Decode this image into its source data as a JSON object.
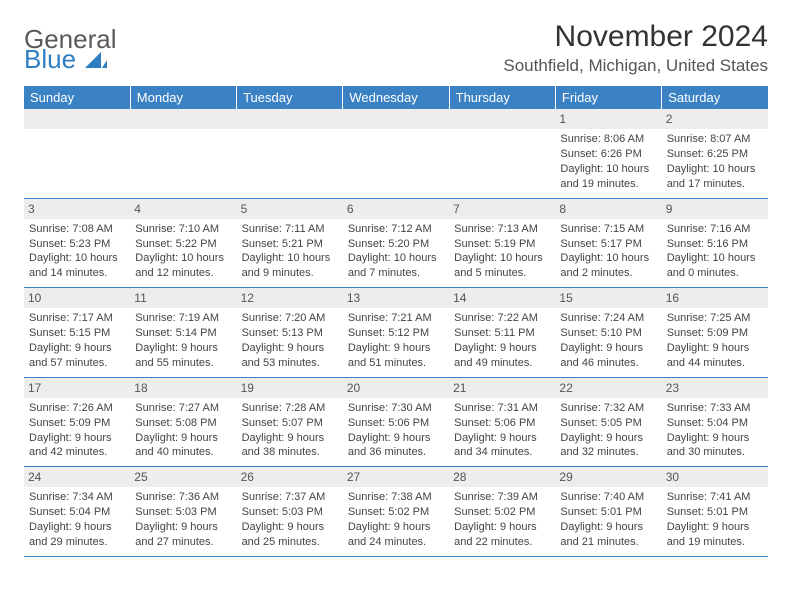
{
  "logo": {
    "line1": "General",
    "line2": "Blue"
  },
  "title": "November 2024",
  "subtitle": "Southfield, Michigan, United States",
  "colors": {
    "headerBar": "#3b82c4",
    "dayStrip": "#ededed",
    "ruleLine": "#3b82c4",
    "logoBlue": "#2f7ec2",
    "text": "#333333"
  },
  "dayHeaders": [
    "Sunday",
    "Monday",
    "Tuesday",
    "Wednesday",
    "Thursday",
    "Friday",
    "Saturday"
  ],
  "weeks": [
    [
      null,
      null,
      null,
      null,
      null,
      {
        "n": "1",
        "sr": "Sunrise: 8:06 AM",
        "ss": "Sunset: 6:26 PM",
        "d1": "Daylight: 10 hours",
        "d2": "and 19 minutes."
      },
      {
        "n": "2",
        "sr": "Sunrise: 8:07 AM",
        "ss": "Sunset: 6:25 PM",
        "d1": "Daylight: 10 hours",
        "d2": "and 17 minutes."
      }
    ],
    [
      {
        "n": "3",
        "sr": "Sunrise: 7:08 AM",
        "ss": "Sunset: 5:23 PM",
        "d1": "Daylight: 10 hours",
        "d2": "and 14 minutes."
      },
      {
        "n": "4",
        "sr": "Sunrise: 7:10 AM",
        "ss": "Sunset: 5:22 PM",
        "d1": "Daylight: 10 hours",
        "d2": "and 12 minutes."
      },
      {
        "n": "5",
        "sr": "Sunrise: 7:11 AM",
        "ss": "Sunset: 5:21 PM",
        "d1": "Daylight: 10 hours",
        "d2": "and 9 minutes."
      },
      {
        "n": "6",
        "sr": "Sunrise: 7:12 AM",
        "ss": "Sunset: 5:20 PM",
        "d1": "Daylight: 10 hours",
        "d2": "and 7 minutes."
      },
      {
        "n": "7",
        "sr": "Sunrise: 7:13 AM",
        "ss": "Sunset: 5:19 PM",
        "d1": "Daylight: 10 hours",
        "d2": "and 5 minutes."
      },
      {
        "n": "8",
        "sr": "Sunrise: 7:15 AM",
        "ss": "Sunset: 5:17 PM",
        "d1": "Daylight: 10 hours",
        "d2": "and 2 minutes."
      },
      {
        "n": "9",
        "sr": "Sunrise: 7:16 AM",
        "ss": "Sunset: 5:16 PM",
        "d1": "Daylight: 10 hours",
        "d2": "and 0 minutes."
      }
    ],
    [
      {
        "n": "10",
        "sr": "Sunrise: 7:17 AM",
        "ss": "Sunset: 5:15 PM",
        "d1": "Daylight: 9 hours",
        "d2": "and 57 minutes."
      },
      {
        "n": "11",
        "sr": "Sunrise: 7:19 AM",
        "ss": "Sunset: 5:14 PM",
        "d1": "Daylight: 9 hours",
        "d2": "and 55 minutes."
      },
      {
        "n": "12",
        "sr": "Sunrise: 7:20 AM",
        "ss": "Sunset: 5:13 PM",
        "d1": "Daylight: 9 hours",
        "d2": "and 53 minutes."
      },
      {
        "n": "13",
        "sr": "Sunrise: 7:21 AM",
        "ss": "Sunset: 5:12 PM",
        "d1": "Daylight: 9 hours",
        "d2": "and 51 minutes."
      },
      {
        "n": "14",
        "sr": "Sunrise: 7:22 AM",
        "ss": "Sunset: 5:11 PM",
        "d1": "Daylight: 9 hours",
        "d2": "and 49 minutes."
      },
      {
        "n": "15",
        "sr": "Sunrise: 7:24 AM",
        "ss": "Sunset: 5:10 PM",
        "d1": "Daylight: 9 hours",
        "d2": "and 46 minutes."
      },
      {
        "n": "16",
        "sr": "Sunrise: 7:25 AM",
        "ss": "Sunset: 5:09 PM",
        "d1": "Daylight: 9 hours",
        "d2": "and 44 minutes."
      }
    ],
    [
      {
        "n": "17",
        "sr": "Sunrise: 7:26 AM",
        "ss": "Sunset: 5:09 PM",
        "d1": "Daylight: 9 hours",
        "d2": "and 42 minutes."
      },
      {
        "n": "18",
        "sr": "Sunrise: 7:27 AM",
        "ss": "Sunset: 5:08 PM",
        "d1": "Daylight: 9 hours",
        "d2": "and 40 minutes."
      },
      {
        "n": "19",
        "sr": "Sunrise: 7:28 AM",
        "ss": "Sunset: 5:07 PM",
        "d1": "Daylight: 9 hours",
        "d2": "and 38 minutes."
      },
      {
        "n": "20",
        "sr": "Sunrise: 7:30 AM",
        "ss": "Sunset: 5:06 PM",
        "d1": "Daylight: 9 hours",
        "d2": "and 36 minutes."
      },
      {
        "n": "21",
        "sr": "Sunrise: 7:31 AM",
        "ss": "Sunset: 5:06 PM",
        "d1": "Daylight: 9 hours",
        "d2": "and 34 minutes."
      },
      {
        "n": "22",
        "sr": "Sunrise: 7:32 AM",
        "ss": "Sunset: 5:05 PM",
        "d1": "Daylight: 9 hours",
        "d2": "and 32 minutes."
      },
      {
        "n": "23",
        "sr": "Sunrise: 7:33 AM",
        "ss": "Sunset: 5:04 PM",
        "d1": "Daylight: 9 hours",
        "d2": "and 30 minutes."
      }
    ],
    [
      {
        "n": "24",
        "sr": "Sunrise: 7:34 AM",
        "ss": "Sunset: 5:04 PM",
        "d1": "Daylight: 9 hours",
        "d2": "and 29 minutes."
      },
      {
        "n": "25",
        "sr": "Sunrise: 7:36 AM",
        "ss": "Sunset: 5:03 PM",
        "d1": "Daylight: 9 hours",
        "d2": "and 27 minutes."
      },
      {
        "n": "26",
        "sr": "Sunrise: 7:37 AM",
        "ss": "Sunset: 5:03 PM",
        "d1": "Daylight: 9 hours",
        "d2": "and 25 minutes."
      },
      {
        "n": "27",
        "sr": "Sunrise: 7:38 AM",
        "ss": "Sunset: 5:02 PM",
        "d1": "Daylight: 9 hours",
        "d2": "and 24 minutes."
      },
      {
        "n": "28",
        "sr": "Sunrise: 7:39 AM",
        "ss": "Sunset: 5:02 PM",
        "d1": "Daylight: 9 hours",
        "d2": "and 22 minutes."
      },
      {
        "n": "29",
        "sr": "Sunrise: 7:40 AM",
        "ss": "Sunset: 5:01 PM",
        "d1": "Daylight: 9 hours",
        "d2": "and 21 minutes."
      },
      {
        "n": "30",
        "sr": "Sunrise: 7:41 AM",
        "ss": "Sunset: 5:01 PM",
        "d1": "Daylight: 9 hours",
        "d2": "and 19 minutes."
      }
    ]
  ]
}
